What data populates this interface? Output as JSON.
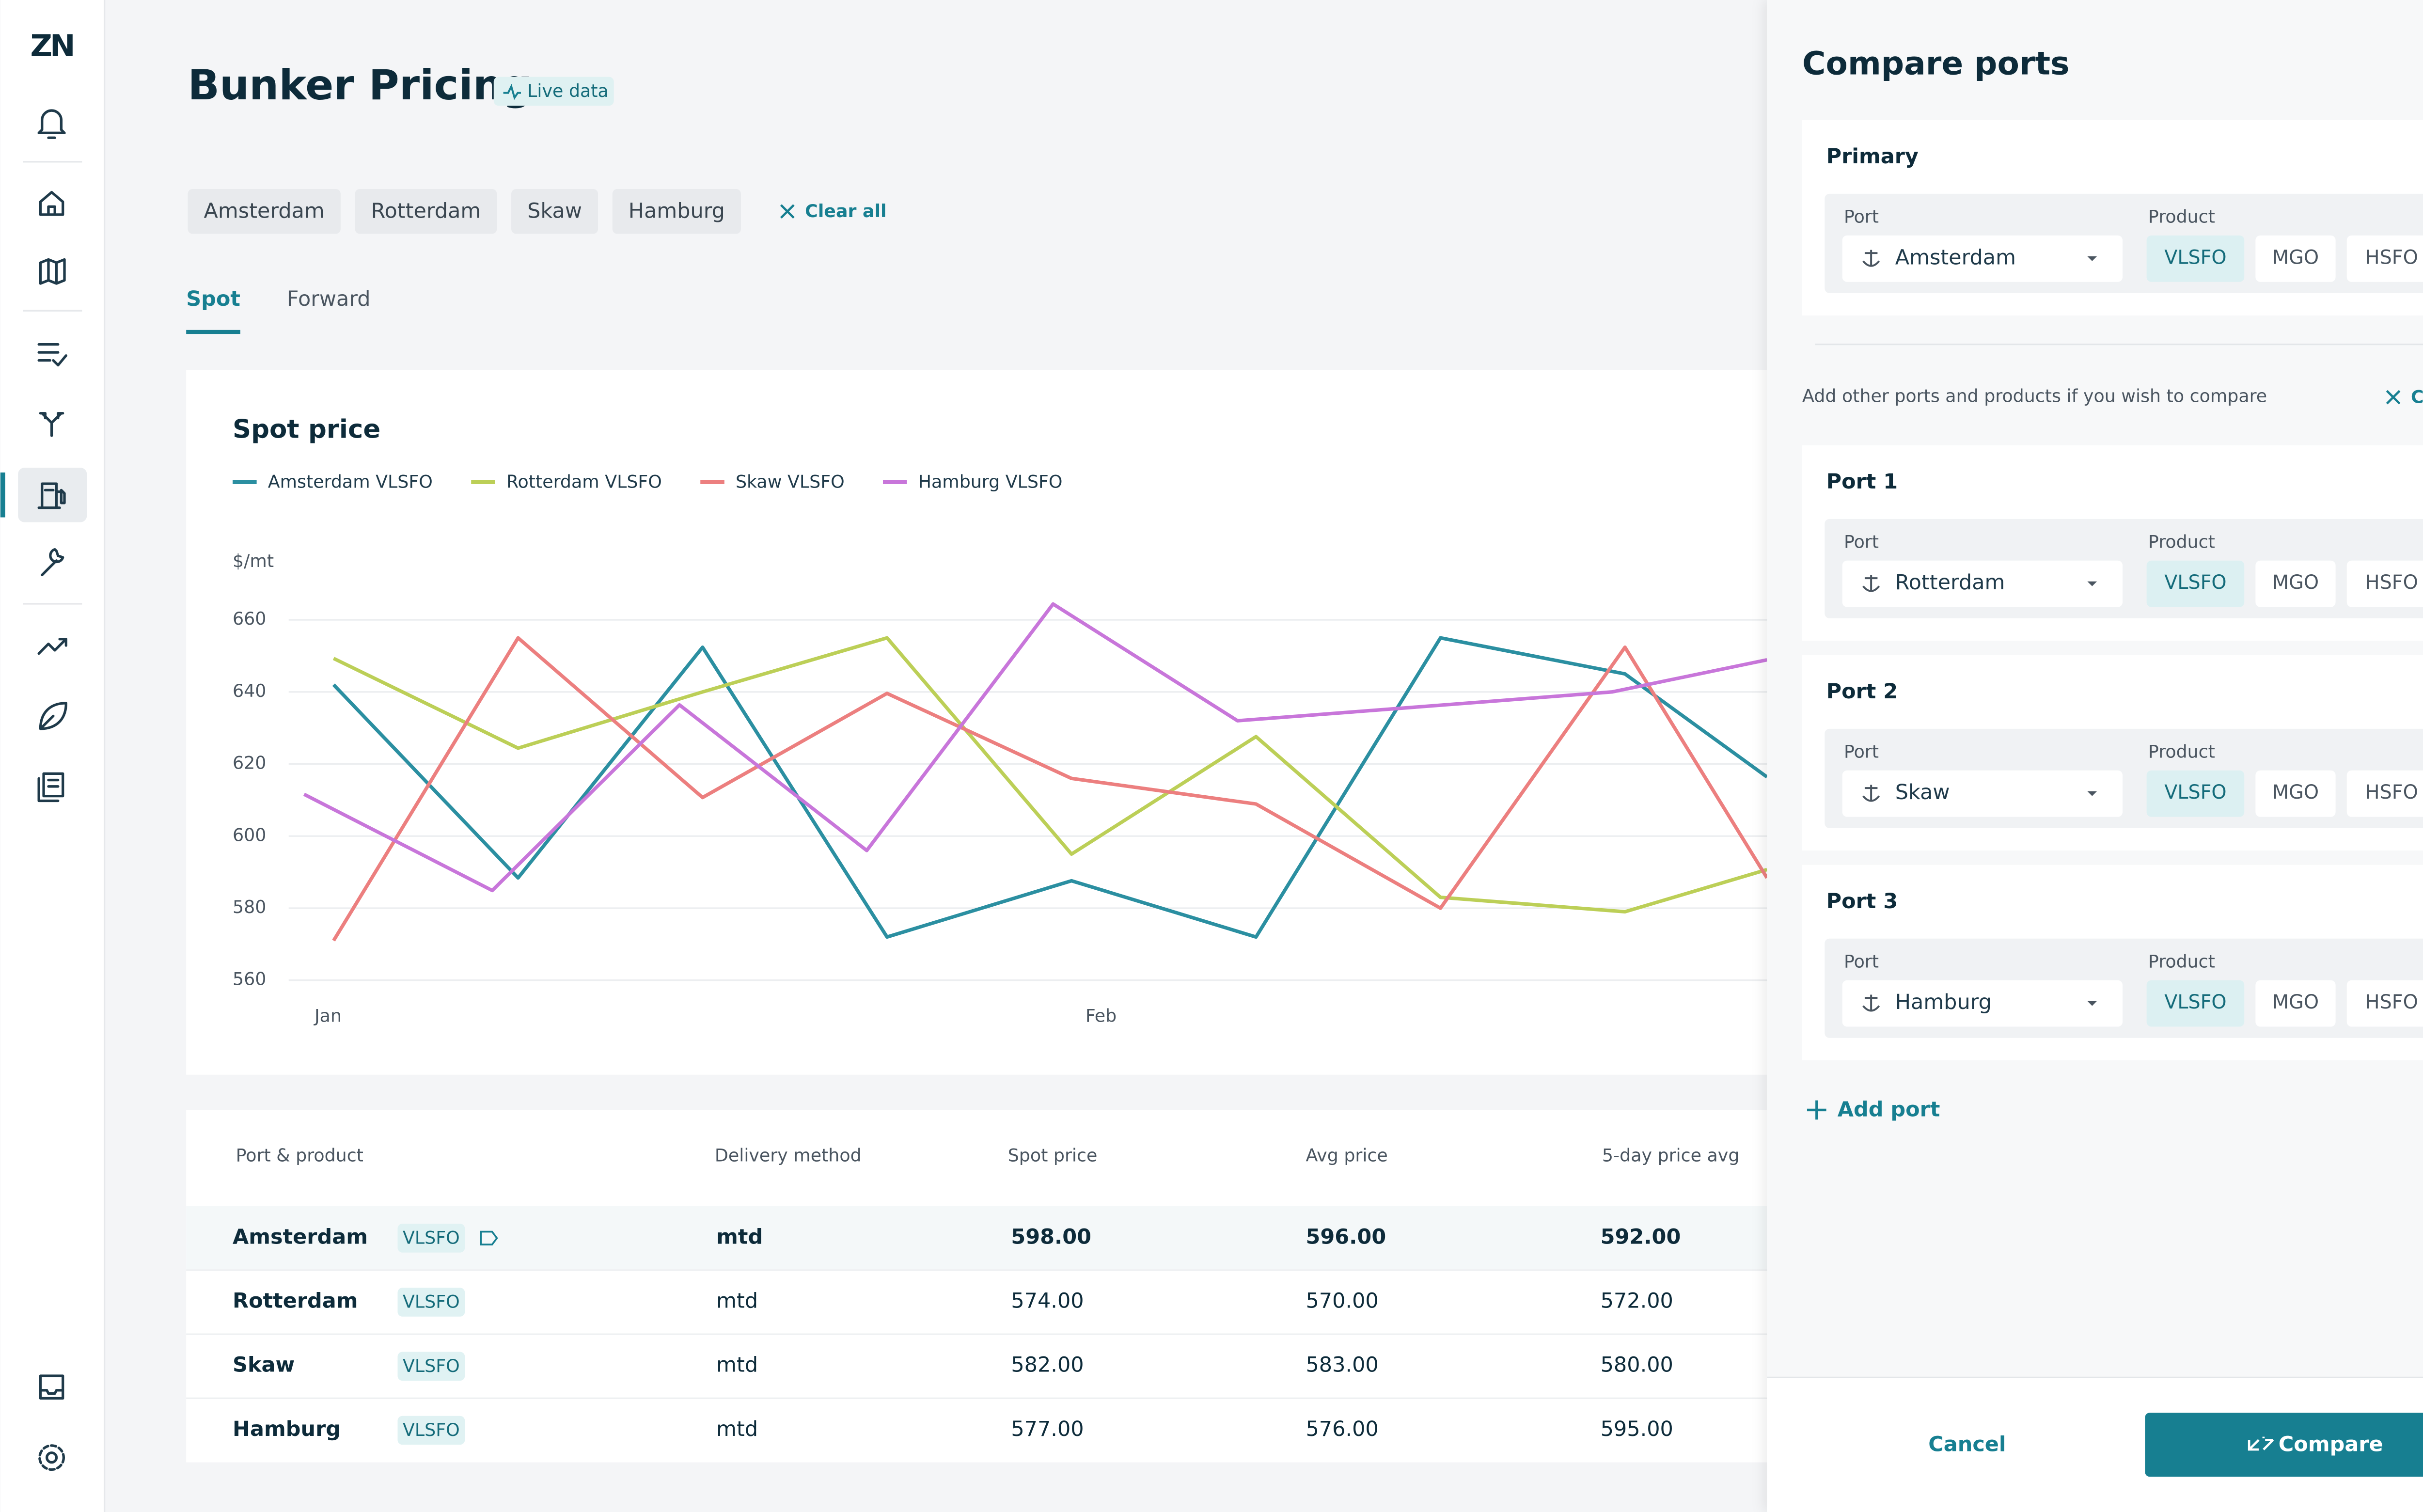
{
  "logo": "ZN",
  "header": {
    "title": "Bunker Pricing",
    "badge": "Live data"
  },
  "filters": {
    "chips": [
      "Amsterdam",
      "Rotterdam",
      "Skaw",
      "Hamburg"
    ],
    "clear": "Clear all"
  },
  "tabs": {
    "items": [
      "Spot",
      "Forward"
    ],
    "active": 0
  },
  "chart_data": {
    "type": "line",
    "title": "Spot price",
    "y_label": "$/mt",
    "xlim": [
      -0.2,
      7.77
    ],
    "xticks": [
      {
        "value": -0.03,
        "label": "Jan"
      },
      {
        "value": 4.16,
        "label": "Feb"
      }
    ],
    "ylim": [
      560,
      660
    ],
    "yticks": [
      560,
      580,
      600,
      620,
      640,
      660
    ],
    "grid": true,
    "series": [
      {
        "name": "Amsterdam VLSFO",
        "color": "#2b8fa1",
        "x": [
          0,
          1,
          2,
          3,
          4,
          5,
          6,
          7,
          7.77
        ],
        "values": [
          642,
          588.4,
          652.4,
          572,
          587.6,
          572,
          655,
          645,
          616.4
        ]
      },
      {
        "name": "Rotterdam VLSFO",
        "color": "#bccf57",
        "x": [
          0,
          1,
          2,
          3,
          4,
          5,
          6,
          7,
          7.77
        ],
        "values": [
          649.3,
          624.4,
          640,
          655,
          595,
          627.6,
          583,
          579,
          590.7
        ]
      },
      {
        "name": "Skaw VLSFO",
        "color": "#ec7f7f",
        "x": [
          0,
          1,
          2,
          3,
          4,
          5,
          6,
          7,
          7.77
        ],
        "values": [
          571,
          655,
          610.7,
          639.6,
          616,
          608.9,
          580,
          652.4,
          588.4
        ]
      },
      {
        "name": "Hamburg VLSFO",
        "color": "#c876da",
        "x": [
          -0.16,
          0.86,
          1.875,
          2.89,
          3.9,
          4.9,
          5.92,
          6.93,
          7.77
        ],
        "values": [
          611.6,
          584.9,
          636.4,
          596,
          664.4,
          632,
          636,
          640,
          648.9
        ]
      }
    ]
  },
  "table": {
    "columns": [
      "Port & product",
      "Delivery method",
      "Spot price",
      "Avg price",
      "5-day price avg"
    ],
    "rows": [
      {
        "port": "Amsterdam",
        "product": "VLSFO",
        "delivery": "mtd",
        "spot": "598.00",
        "avg": "596.00",
        "avg5": "592.00",
        "highlighted": true
      },
      {
        "port": "Rotterdam",
        "product": "VLSFO",
        "delivery": "mtd",
        "spot": "574.00",
        "avg": "570.00",
        "avg5": "572.00"
      },
      {
        "port": "Skaw",
        "product": "VLSFO",
        "delivery": "mtd",
        "spot": "582.00",
        "avg": "583.00",
        "avg5": "580.00"
      },
      {
        "port": "Hamburg",
        "product": "VLSFO",
        "delivery": "mtd",
        "spot": "577.00",
        "avg": "576.00",
        "avg5": "595.00"
      }
    ]
  },
  "panel": {
    "title": "Compare ports",
    "primary": {
      "label": "Primary",
      "port_label": "Port",
      "port": "Amsterdam",
      "product_label": "Product",
      "products": [
        "VLSFO",
        "MGO",
        "HSFO"
      ],
      "selected": 0
    },
    "note": "Add other ports and products if you wish to compare",
    "clear": "Clear all",
    "ports": [
      {
        "label": "Port 1",
        "port_label": "Port",
        "port": "Rotterdam",
        "product_label": "Product",
        "products": [
          "VLSFO",
          "MGO",
          "HSFO"
        ],
        "selected": 0
      },
      {
        "label": "Port 2",
        "port_label": "Port",
        "port": "Skaw",
        "product_label": "Product",
        "products": [
          "VLSFO",
          "MGO",
          "HSFO"
        ],
        "selected": 0
      },
      {
        "label": "Port 3",
        "port_label": "Port",
        "port": "Hamburg",
        "product_label": "Product",
        "products": [
          "VLSFO",
          "MGO",
          "HSFO"
        ],
        "selected": 0
      }
    ],
    "add_port": "Add port",
    "cancel": "Cancel",
    "compare": "Compare"
  }
}
